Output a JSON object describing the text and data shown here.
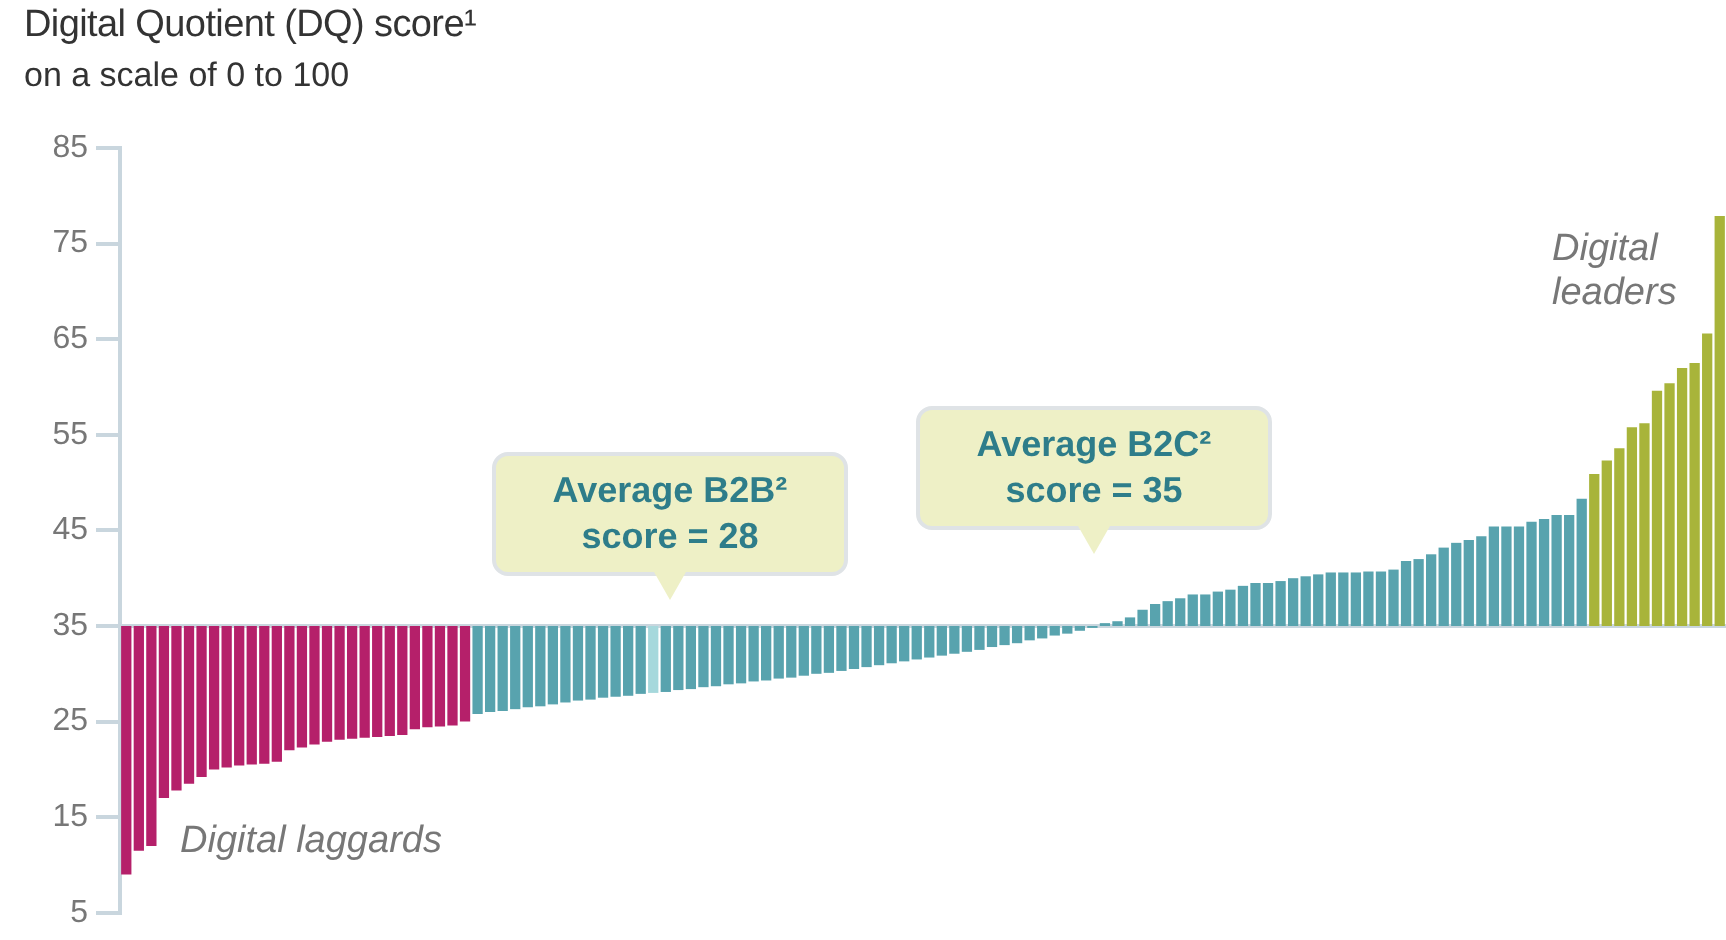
{
  "chart_data": {
    "type": "bar",
    "title": "Digital Quotient (DQ) score¹",
    "subtitle": "on a scale of 0 to 100",
    "annotations": [
      "Average B2B² score = 28",
      "Average B2C² score = 35",
      "Digital laggards",
      "Digital leaders"
    ],
    "categories": [
      null,
      null,
      null,
      null,
      null,
      null,
      null,
      null,
      null,
      null,
      null,
      null,
      null,
      null,
      null,
      null,
      null,
      null,
      null,
      null,
      null,
      null,
      null,
      null,
      null,
      null,
      null,
      null,
      null,
      null,
      null,
      null,
      null,
      null,
      null,
      null,
      null,
      null,
      null,
      null,
      null,
      null,
      null,
      null,
      null,
      null,
      null,
      null,
      null,
      null,
      null,
      null,
      null,
      null,
      null,
      null,
      null,
      null,
      null,
      null,
      null,
      null,
      null,
      null,
      null,
      null,
      null,
      null,
      null,
      null,
      null,
      null,
      null,
      null,
      null,
      null,
      null,
      null,
      null,
      null,
      null,
      null,
      null,
      null,
      null,
      null,
      null,
      null,
      null,
      null,
      null,
      null,
      null,
      null,
      null,
      null,
      null,
      null,
      null,
      null,
      null,
      null,
      null,
      null,
      null,
      null,
      null,
      null,
      null,
      null,
      null,
      null,
      null,
      null,
      null,
      null,
      null,
      null,
      null,
      null,
      null,
      null,
      null,
      null,
      null,
      null,
      null,
      null
    ],
    "base": [
      35,
      35,
      35,
      35,
      35,
      35,
      35,
      35,
      35,
      35,
      35,
      35,
      35,
      35,
      35,
      35,
      35,
      35,
      35,
      35,
      35,
      35,
      35,
      35,
      35,
      35,
      35,
      35,
      35,
      35,
      35,
      35,
      35,
      35,
      35,
      35,
      35,
      35,
      35,
      35,
      35,
      35,
      35,
      35,
      35,
      35,
      35,
      35,
      35,
      35,
      35,
      35,
      35,
      35,
      35,
      35,
      35,
      35,
      35,
      35,
      35,
      35,
      35,
      35,
      35,
      35,
      35,
      35,
      35,
      35,
      35,
      35,
      35,
      35,
      35,
      35,
      35,
      35,
      35,
      35,
      35,
      35,
      35,
      35,
      35,
      35,
      35,
      35,
      35,
      35,
      35,
      35,
      35,
      35,
      35,
      35,
      35,
      35,
      35,
      35,
      35,
      35,
      35,
      35,
      35,
      35,
      35,
      35,
      35,
      35,
      35,
      35,
      35,
      35,
      35,
      35,
      35,
      35,
      35,
      35,
      35,
      35,
      35,
      35,
      35,
      35,
      35,
      35
    ],
    "values": [
      -26,
      -23.5,
      -23,
      -18,
      -17.2,
      -16.5,
      -15.8,
      -15,
      -14.8,
      -14.6,
      -14.5,
      -14.4,
      -14.2,
      -13,
      -12.7,
      -12.4,
      -12.1,
      -11.9,
      -11.8,
      -11.7,
      -11.6,
      -11.5,
      -11.4,
      -10.8,
      -10.6,
      -10.5,
      -10.4,
      -10,
      -9.2,
      -9,
      -8.9,
      -8.7,
      -8.5,
      -8.4,
      -8.2,
      -8,
      -7.8,
      -7.7,
      -7.5,
      -7.4,
      -7.3,
      -7.1,
      -7,
      -6.9,
      -6.7,
      -6.6,
      -6.4,
      -6.3,
      -6.1,
      -6,
      -5.8,
      -5.7,
      -5.5,
      -5.4,
      -5.2,
      -5,
      -4.9,
      -4.7,
      -4.5,
      -4.3,
      -4.1,
      -3.9,
      -3.7,
      -3.5,
      -3.3,
      -3.1,
      -2.9,
      -2.7,
      -2.5,
      -2.2,
      -2,
      -1.8,
      -1.5,
      -1.3,
      -1,
      -0.8,
      -0.5,
      -0.2,
      0.3,
      0.5,
      0.9,
      1.7,
      2.3,
      2.6,
      2.9,
      3.3,
      3.3,
      3.6,
      3.8,
      4.2,
      4.5,
      4.5,
      4.7,
      5,
      5.2,
      5.4,
      5.6,
      5.6,
      5.6,
      5.7,
      5.7,
      5.9,
      6.8,
      7,
      7.5,
      8.2,
      8.7,
      9,
      9.4,
      10.4,
      10.4,
      10.4,
      10.9,
      11.2,
      11.6,
      11.6,
      13.3,
      15.9,
      17.3,
      18.6,
      20.8,
      21.2,
      24.6,
      25.4,
      27,
      27.5,
      30.6,
      42.9
    ],
    "colors": [
      "#b5206a",
      "#b5206a",
      "#b5206a",
      "#b5206a",
      "#b5206a",
      "#b5206a",
      "#b5206a",
      "#b5206a",
      "#b5206a",
      "#b5206a",
      "#b5206a",
      "#b5206a",
      "#b5206a",
      "#b5206a",
      "#b5206a",
      "#b5206a",
      "#b5206a",
      "#b5206a",
      "#b5206a",
      "#b5206a",
      "#b5206a",
      "#b5206a",
      "#b5206a",
      "#b5206a",
      "#b5206a",
      "#b5206a",
      "#b5206a",
      "#b5206a",
      "#58a3ae",
      "#58a3ae",
      "#58a3ae",
      "#58a3ae",
      "#58a3ae",
      "#58a3ae",
      "#58a3ae",
      "#58a3ae",
      "#58a3ae",
      "#58a3ae",
      "#58a3ae",
      "#58a3ae",
      "#58a3ae",
      "#58a3ae",
      "#a6d8dc",
      "#58a3ae",
      "#58a3ae",
      "#58a3ae",
      "#58a3ae",
      "#58a3ae",
      "#58a3ae",
      "#58a3ae",
      "#58a3ae",
      "#58a3ae",
      "#58a3ae",
      "#58a3ae",
      "#58a3ae",
      "#58a3ae",
      "#58a3ae",
      "#58a3ae",
      "#58a3ae",
      "#58a3ae",
      "#58a3ae",
      "#58a3ae",
      "#58a3ae",
      "#58a3ae",
      "#58a3ae",
      "#58a3ae",
      "#58a3ae",
      "#58a3ae",
      "#58a3ae",
      "#58a3ae",
      "#58a3ae",
      "#58a3ae",
      "#58a3ae",
      "#58a3ae",
      "#58a3ae",
      "#58a3ae",
      "#58a3ae",
      "#58a3ae",
      "#58a3ae",
      "#58a3ae",
      "#58a3ae",
      "#58a3ae",
      "#58a3ae",
      "#58a3ae",
      "#58a3ae",
      "#58a3ae",
      "#58a3ae",
      "#58a3ae",
      "#58a3ae",
      "#58a3ae",
      "#58a3ae",
      "#58a3ae",
      "#58a3ae",
      "#58a3ae",
      "#58a3ae",
      "#58a3ae",
      "#58a3ae",
      "#58a3ae",
      "#58a3ae",
      "#58a3ae",
      "#58a3ae",
      "#58a3ae",
      "#58a3ae",
      "#58a3ae",
      "#58a3ae",
      "#58a3ae",
      "#58a3ae",
      "#58a3ae",
      "#58a3ae",
      "#58a3ae",
      "#58a3ae",
      "#58a3ae",
      "#58a3ae",
      "#58a3ae",
      "#58a3ae",
      "#58a3ae",
      "#58a3ae",
      "#a8b43a",
      "#a8b43a",
      "#a8b43a",
      "#a8b43a",
      "#a8b43a",
      "#a8b43a",
      "#a8b43a",
      "#a8b43a",
      "#a8b43a",
      "#a8b43a",
      "#a8b43a"
    ],
    "ylim": [
      5,
      85
    ],
    "yticks": [
      5,
      15,
      25,
      35,
      45,
      55,
      65,
      75,
      85
    ],
    "ref_lines": [
      {
        "axis": "y",
        "value": 35,
        "color": "#c9d6de"
      }
    ],
    "grid": false,
    "legend": false
  }
}
